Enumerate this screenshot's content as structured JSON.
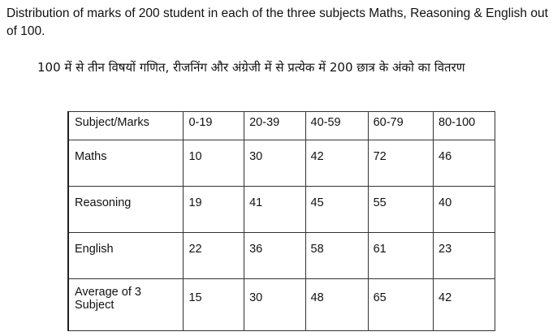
{
  "intro_en": "Distribution of marks of 200 student in each of the three subjects Maths, Reasoning & English out of 100.",
  "intro_hi": "100 में से तीन विषयों गणित, रीजनिंग और अंग्रेजी में से प्रत्येक में 200 छात्र के अंको का वितरण",
  "table": {
    "corner_header": "Subject/Marks",
    "columns": [
      "0-19",
      "20-39",
      "40-59",
      "60-79",
      "80-100"
    ],
    "rows": [
      {
        "label": "Maths",
        "values": [
          "10",
          "30",
          "42",
          "72",
          "46"
        ]
      },
      {
        "label": "Reasoning",
        "values": [
          "19",
          "41",
          "45",
          "55",
          "40"
        ]
      },
      {
        "label": "English",
        "values": [
          "22",
          "36",
          "58",
          "61",
          "23"
        ]
      },
      {
        "label": "Average of 3 Subject",
        "values": [
          "15",
          "30",
          "48",
          "65",
          "42"
        ]
      }
    ]
  }
}
